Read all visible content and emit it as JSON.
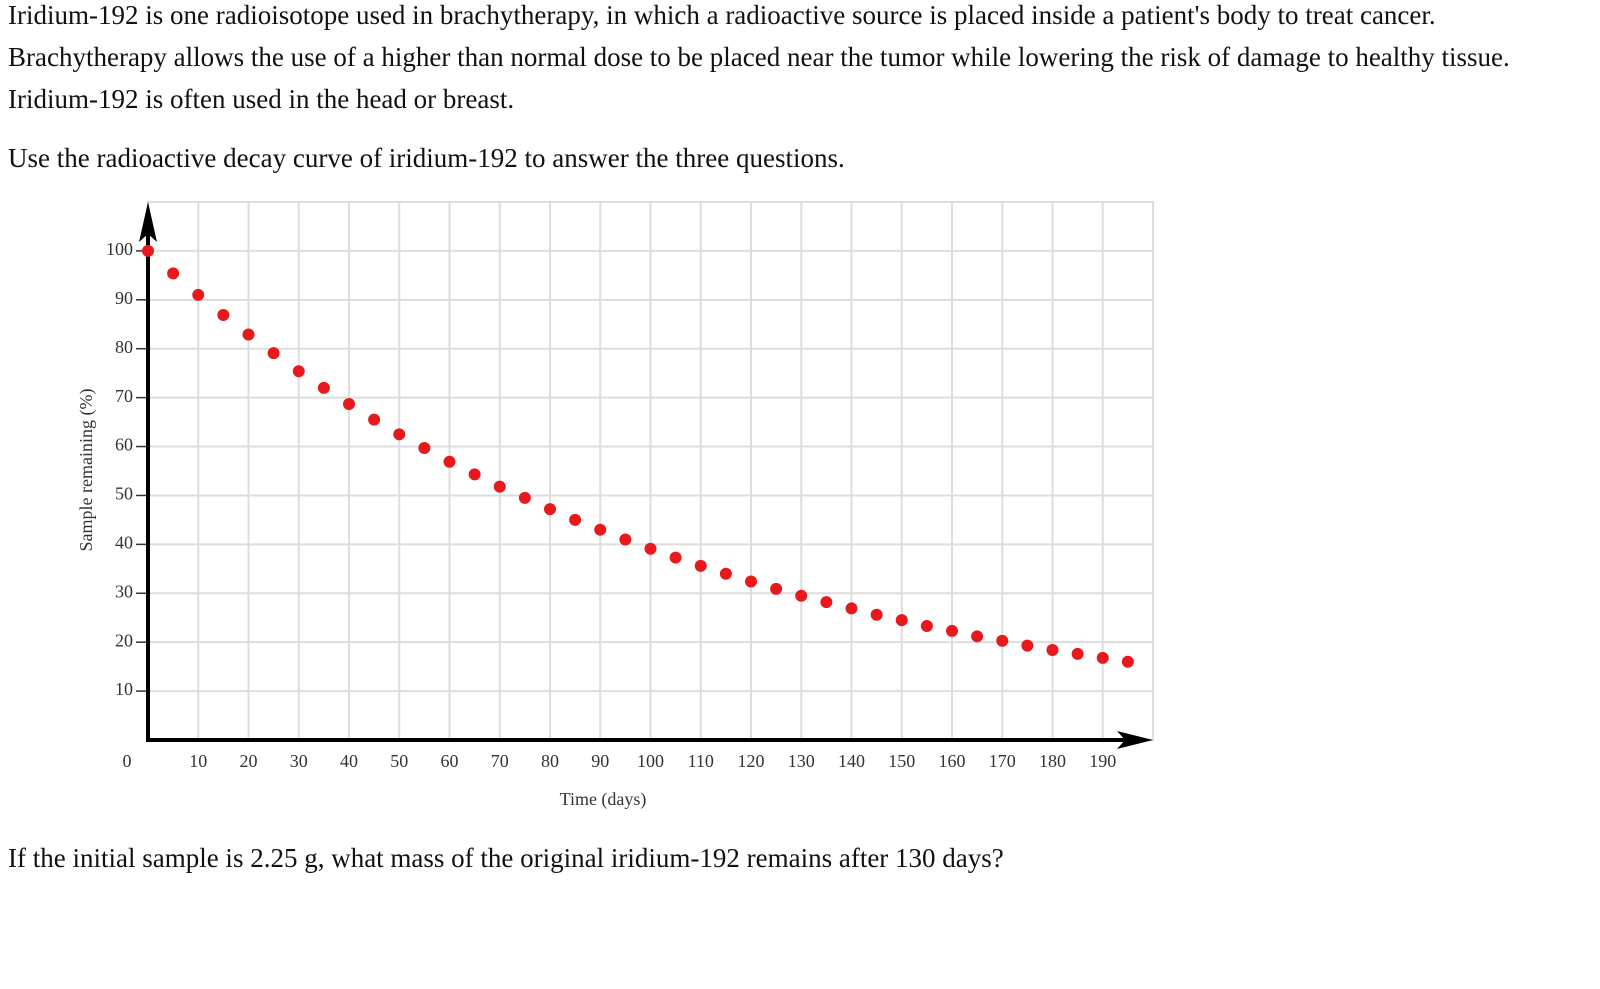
{
  "paragraphs": [
    "Iridium-192 is one radioisotope used in brachytherapy, in which a radioactive source is placed inside a patient's body to treat cancer. Brachytherapy allows the use of a higher than normal dose to be placed near the tumor while lowering the risk of damage to healthy tissue. Iridium-192 is often used in the head or breast.",
    "Use the radioactive decay curve of iridium-192 to answer the three questions."
  ],
  "chart_data": {
    "type": "scatter",
    "xlabel": "Time (days)",
    "ylabel": "Sample remaining (%)",
    "x": [
      0,
      5,
      10,
      15,
      20,
      25,
      30,
      35,
      40,
      45,
      50,
      55,
      60,
      65,
      70,
      75,
      80,
      85,
      90,
      95,
      100,
      105,
      110,
      115,
      120,
      125,
      130,
      135,
      140,
      145,
      150,
      155,
      160,
      165,
      170,
      175,
      180,
      185,
      190,
      195
    ],
    "values": [
      100,
      95.4,
      91.0,
      86.9,
      82.9,
      79.1,
      75.4,
      72.0,
      68.7,
      65.5,
      62.5,
      59.7,
      56.9,
      54.3,
      51.8,
      49.5,
      47.2,
      45.0,
      43.0,
      41.0,
      39.1,
      37.3,
      35.6,
      34.0,
      32.4,
      30.9,
      29.5,
      28.2,
      26.9,
      25.6,
      24.5,
      23.3,
      22.3,
      21.2,
      20.3,
      19.3,
      18.4,
      17.6,
      16.8,
      16.0
    ],
    "color": "#e8191c",
    "xlim": [
      0,
      200
    ],
    "ylim": [
      0,
      110
    ],
    "xticks": [
      0,
      10,
      20,
      30,
      40,
      50,
      60,
      70,
      80,
      90,
      100,
      110,
      120,
      130,
      140,
      150,
      160,
      170,
      180,
      190
    ],
    "yticks": [
      10,
      20,
      30,
      40,
      50,
      60,
      70,
      80,
      90,
      100
    ],
    "grid": true
  },
  "question": "If the initial sample is 2.25 g, what mass of the original iridium-192 remains after 130 days?"
}
